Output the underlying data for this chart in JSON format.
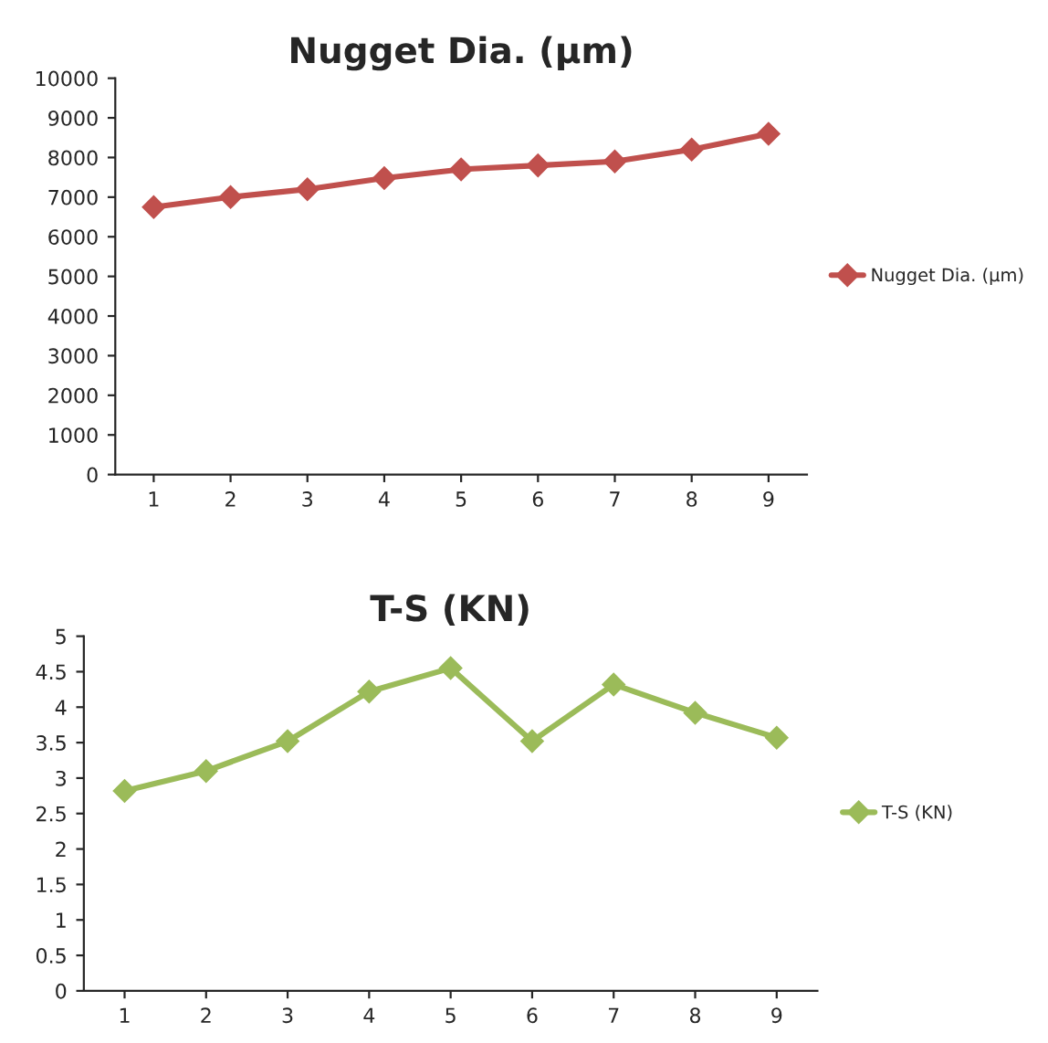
{
  "chart_data": [
    {
      "type": "line",
      "title": "Nugget Dia. (µm)",
      "categories": [
        "1",
        "2",
        "3",
        "4",
        "5",
        "6",
        "7",
        "8",
        "9"
      ],
      "series": [
        {
          "name": "Nugget Dia. (µm)",
          "color": "#c0504d",
          "values": [
            6750,
            7000,
            7200,
            7480,
            7700,
            7800,
            7900,
            8200,
            8600
          ]
        }
      ],
      "ylim": [
        0,
        10000
      ],
      "yticks": [
        0,
        1000,
        2000,
        3000,
        4000,
        5000,
        6000,
        7000,
        8000,
        9000,
        10000
      ],
      "marker": "diamond",
      "legend": "right",
      "grid": false
    },
    {
      "type": "line",
      "title": "T-S (KN)",
      "categories": [
        "1",
        "2",
        "3",
        "4",
        "5",
        "6",
        "7",
        "8",
        "9"
      ],
      "series": [
        {
          "name": "T-S (KN)",
          "color": "#9bbb59",
          "values": [
            2.82,
            3.1,
            3.52,
            4.22,
            4.55,
            3.52,
            4.32,
            3.92,
            3.57
          ]
        }
      ],
      "ylim": [
        0,
        5
      ],
      "yticks": [
        0,
        0.5,
        1,
        1.5,
        2,
        2.5,
        3,
        3.5,
        4,
        4.5,
        5
      ],
      "marker": "diamond",
      "legend": "right",
      "grid": false
    }
  ]
}
